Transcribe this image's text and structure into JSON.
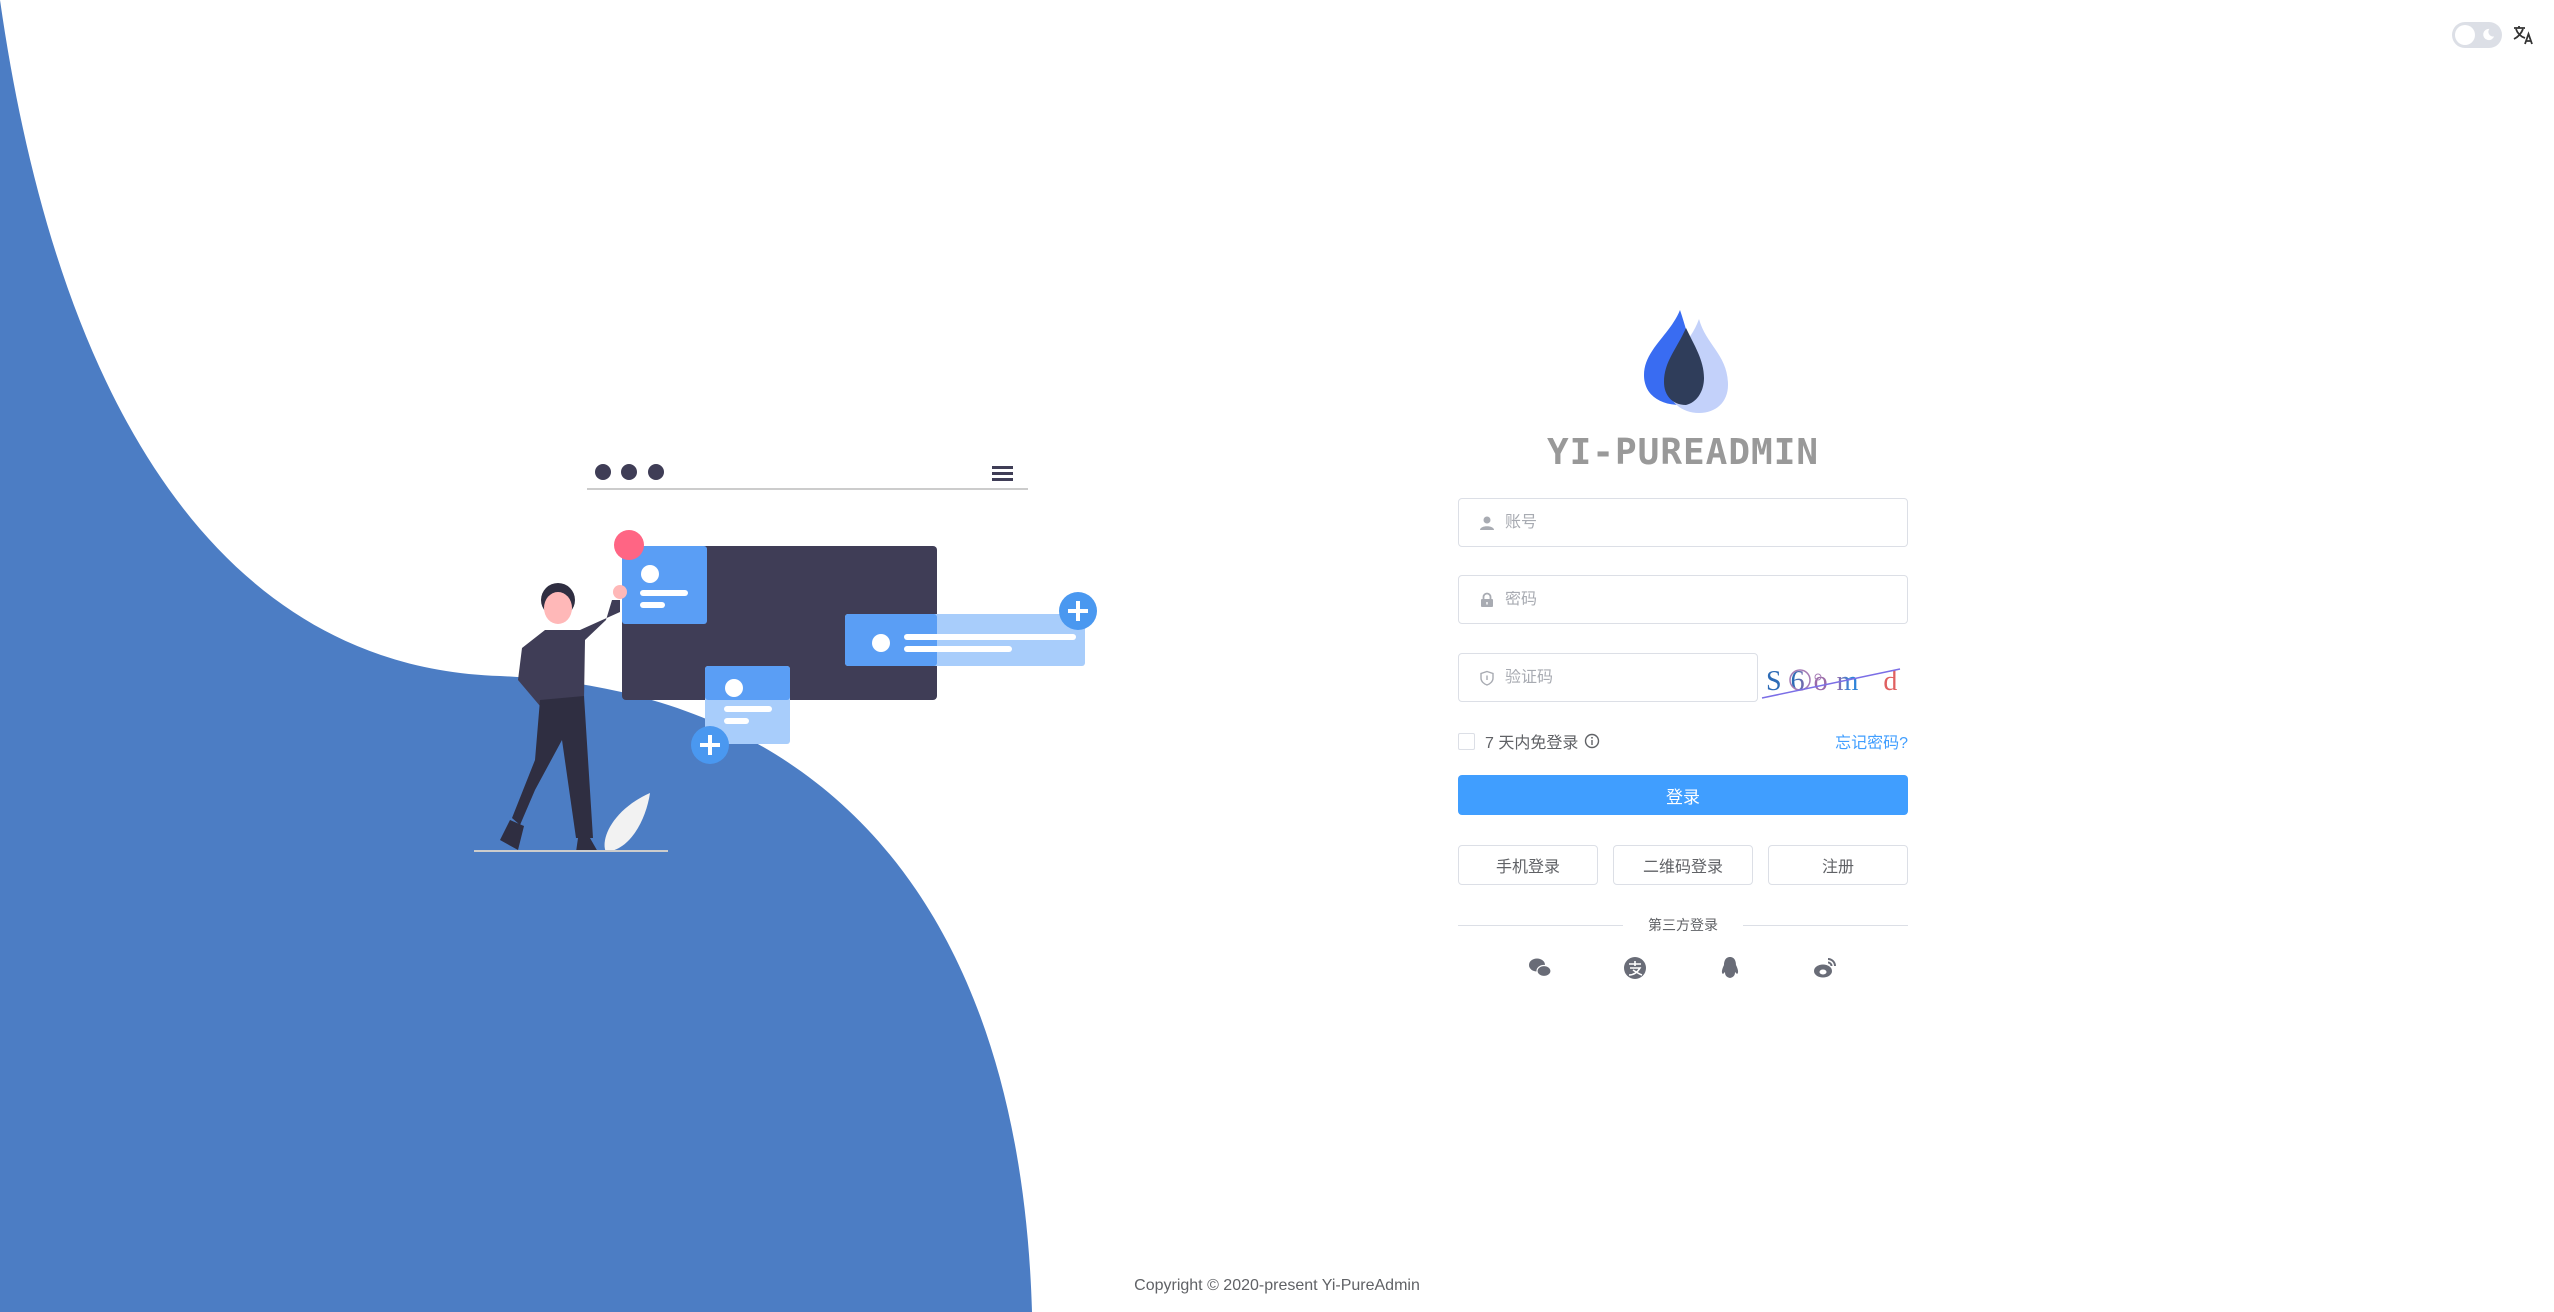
{
  "app": {
    "title": "YI-PUREADMIN",
    "copyright": "Copyright © 2020-present Yi-PureAdmin"
  },
  "topbar": {
    "theme_toggle": "dark-mode-toggle",
    "language_icon": "translate-icon"
  },
  "colors": {
    "primary": "#409eff",
    "wave": "#4c7dc4",
    "board": "#3f3d56",
    "card": "#5a9ef5",
    "accent_red": "#ff6584"
  },
  "form": {
    "username": {
      "placeholder": "账号",
      "value": "",
      "icon": "user-icon"
    },
    "password": {
      "placeholder": "密码",
      "value": "",
      "icon": "lock-icon"
    },
    "captcha": {
      "placeholder": "验证码",
      "value": "",
      "icon": "shield-icon",
      "image_text": "S6om d"
    },
    "remember_label": "7 天内免登录",
    "forgot_label": "忘记密码?",
    "login_label": "登录",
    "alt_buttons": [
      "手机登录",
      "二维码登录",
      "注册"
    ],
    "third_party_label": "第三方登录",
    "social": [
      "wechat-icon",
      "alipay-icon",
      "qq-icon",
      "weibo-icon"
    ]
  }
}
